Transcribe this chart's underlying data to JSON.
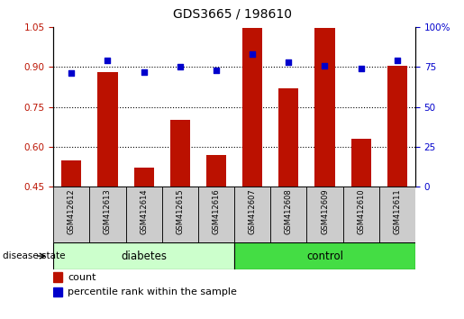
{
  "title": "GDS3665 / 198610",
  "samples": [
    "GSM412612",
    "GSM412613",
    "GSM412614",
    "GSM412615",
    "GSM412616",
    "GSM412607",
    "GSM412608",
    "GSM412609",
    "GSM412610",
    "GSM412611"
  ],
  "counts": [
    0.55,
    0.88,
    0.52,
    0.7,
    0.57,
    1.047,
    0.82,
    1.047,
    0.63,
    0.905
  ],
  "percentiles": [
    71,
    79,
    72,
    75,
    73,
    83,
    78,
    76,
    74,
    79
  ],
  "bar_color": "#bb1100",
  "dot_color": "#0000cc",
  "ylim_left": [
    0.45,
    1.05
  ],
  "ylim_right": [
    0,
    100
  ],
  "yticks_left": [
    0.45,
    0.6,
    0.75,
    0.9,
    1.05
  ],
  "yticks_right": [
    0,
    25,
    50,
    75,
    100
  ],
  "ytick_labels_right": [
    "0",
    "25",
    "50",
    "75",
    "100%"
  ],
  "grid_yticks": [
    0.6,
    0.75,
    0.9
  ],
  "diabetes_color": "#ccffcc",
  "control_color": "#44dd44",
  "xtick_bg_color": "#cccccc",
  "disease_state_label": "disease state",
  "legend_count_label": "count",
  "legend_percentile_label": "percentile rank within the sample",
  "bar_width": 0.55
}
